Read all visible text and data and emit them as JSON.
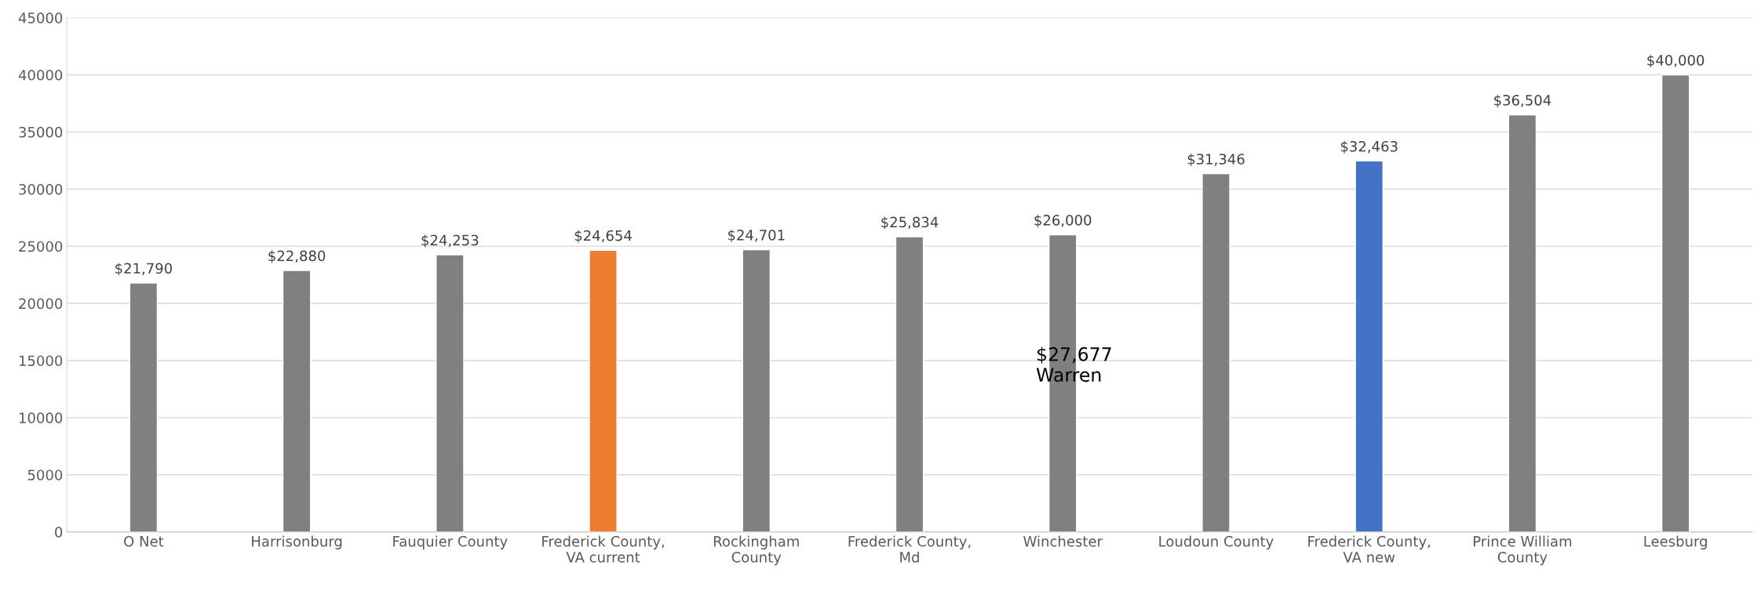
{
  "chart_data": {
    "type": "bar",
    "categories": [
      "O Net",
      "Harrisonburg",
      "Fauquier County",
      "Frederick County,\nVA current",
      "Rockingham\nCounty",
      "Frederick County,\nMd",
      "Winchester",
      "Loudoun County",
      "Frederick County,\nVA new",
      "Prince William\nCounty",
      "Leesburg"
    ],
    "values": [
      21790,
      22880,
      24253,
      24654,
      24701,
      25834,
      26000,
      31346,
      32463,
      36504,
      40000
    ],
    "colors": [
      "#808080",
      "#808080",
      "#808080",
      "#ed7d31",
      "#808080",
      "#808080",
      "#808080",
      "#808080",
      "#4472c4",
      "#808080",
      "#808080"
    ],
    "value_labels": [
      "$21,790",
      "$22,880",
      "$24,253",
      "$24,654",
      "$24,701",
      "$25,834",
      "$26,000",
      "$31,346",
      "$32,463",
      "$36,504",
      "$40,000"
    ],
    "ylim": [
      0,
      45000
    ],
    "yticks": [
      0,
      5000,
      10000,
      15000,
      20000,
      25000,
      30000,
      35000,
      40000,
      45000
    ],
    "grid": "y",
    "annotations": [
      "$27,677\nWarren"
    ]
  }
}
